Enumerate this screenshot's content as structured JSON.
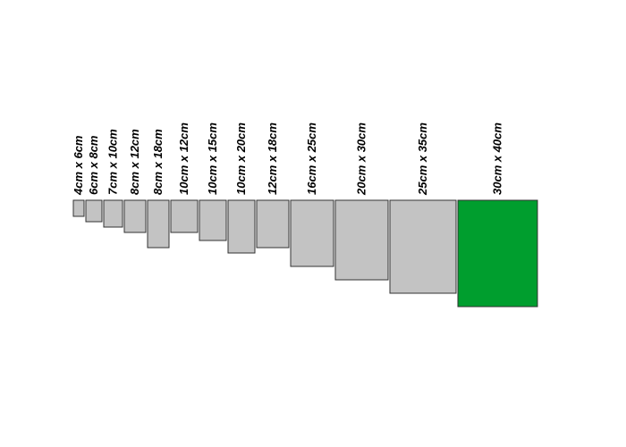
{
  "colors": {
    "box_fill": "#c3c3c3",
    "highlight_fill": "#009e2e",
    "box_stroke": "#333333",
    "label_color": "#000000"
  },
  "sizes": [
    {
      "label": "4cm x 6cm",
      "width_cm": 4,
      "height_cm": 6,
      "highlighted": false
    },
    {
      "label": "6cm x 8cm",
      "width_cm": 6,
      "height_cm": 8,
      "highlighted": false
    },
    {
      "label": "7cm x 10cm",
      "width_cm": 7,
      "height_cm": 10,
      "highlighted": false
    },
    {
      "label": "8cm x 12cm",
      "width_cm": 8,
      "height_cm": 12,
      "highlighted": false
    },
    {
      "label": "8cm x 18cm",
      "width_cm": 8,
      "height_cm": 18,
      "highlighted": false
    },
    {
      "label": "10cm x 12cm",
      "width_cm": 10,
      "height_cm": 12,
      "highlighted": false
    },
    {
      "label": "10cm x 15cm",
      "width_cm": 10,
      "height_cm": 15,
      "highlighted": false
    },
    {
      "label": "10cm x 20cm",
      "width_cm": 10,
      "height_cm": 20,
      "highlighted": false
    },
    {
      "label": "12cm x 18cm",
      "width_cm": 12,
      "height_cm": 18,
      "highlighted": false
    },
    {
      "label": "16cm x 25cm",
      "width_cm": 16,
      "height_cm": 25,
      "highlighted": false
    },
    {
      "label": "20cm x 30cm",
      "width_cm": 20,
      "height_cm": 30,
      "highlighted": false
    },
    {
      "label": "25cm x 35cm",
      "width_cm": 25,
      "height_cm": 35,
      "highlighted": false
    },
    {
      "label": "30cm x 40cm",
      "width_cm": 30,
      "height_cm": 40,
      "highlighted": true
    }
  ]
}
